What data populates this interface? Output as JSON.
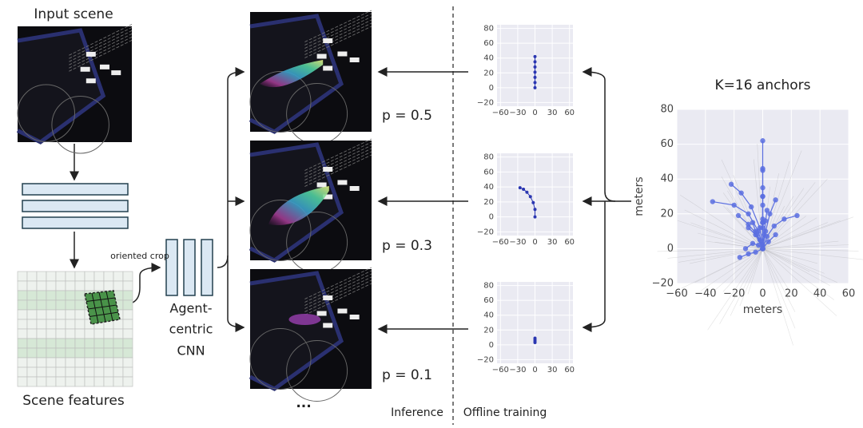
{
  "input_title": "Input scene",
  "features_title": "Scene features",
  "crop_label": "oriented crop",
  "cnn_label": [
    "Agent-",
    "centric",
    "CNN"
  ],
  "probabilities": [
    "p = 0.5",
    "p = 0.3",
    "p = 0.1"
  ],
  "more": "...",
  "inference": "Inference",
  "offline": "Offline training",
  "chart_data": [
    {
      "type": "line",
      "color": "#2a36b1",
      "grid": true,
      "xlim": [
        -66,
        66
      ],
      "ylim": [
        -25,
        85
      ],
      "xticks": [
        {
          "value": -60,
          "label": "−60"
        },
        {
          "value": -30,
          "label": "−30"
        },
        0,
        30,
        60
      ],
      "yticks": [
        {
          "value": -20,
          "label": "−20"
        },
        0,
        20,
        40,
        60,
        80
      ],
      "series": [
        {
          "x": [
            0,
            0,
            0,
            0,
            0,
            0,
            0
          ],
          "values": [
            0,
            7,
            14,
            21,
            28,
            35,
            42
          ]
        }
      ]
    },
    {
      "type": "line",
      "color": "#2a36b1",
      "grid": true,
      "xlim": [
        -66,
        66
      ],
      "ylim": [
        -25,
        85
      ],
      "xticks": [
        {
          "value": -60,
          "label": "−60"
        },
        {
          "value": -30,
          "label": "−30"
        },
        0,
        30,
        60
      ],
      "yticks": [
        {
          "value": -20,
          "label": "−20"
        },
        0,
        20,
        40,
        60,
        80
      ],
      "series": [
        {
          "x": [
            0,
            0,
            -3,
            -8,
            -14,
            -20,
            -26
          ],
          "values": [
            0,
            10,
            19,
            27,
            33,
            37,
            39
          ]
        }
      ]
    },
    {
      "type": "line",
      "color": "#2a36b1",
      "grid": true,
      "xlim": [
        -66,
        66
      ],
      "ylim": [
        -25,
        85
      ],
      "xticks": [
        {
          "value": -60,
          "label": "−60"
        },
        {
          "value": -30,
          "label": "−30"
        },
        0,
        30,
        60
      ],
      "yticks": [
        {
          "value": -20,
          "label": "−20"
        },
        0,
        20,
        40,
        60,
        80
      ],
      "series": [
        {
          "x": [
            0,
            0,
            0,
            0
          ],
          "values": [
            3,
            5,
            7,
            9
          ]
        }
      ]
    },
    {
      "type": "line",
      "title": "K=16 anchors",
      "xlabel": "meters",
      "ylabel": "meters",
      "color": "#5a6ee0",
      "grid": true,
      "xlim": [
        -60,
        60
      ],
      "ylim": [
        -20,
        80
      ],
      "xticks": [
        {
          "value": -60,
          "label": "−60"
        },
        {
          "value": -40,
          "label": "−40"
        },
        {
          "value": -20,
          "label": "−20"
        },
        0,
        20,
        40,
        60
      ],
      "yticks": [
        {
          "value": -20,
          "label": "−20"
        },
        0,
        20,
        40,
        60,
        80
      ],
      "series": [
        {
          "x": [
            0,
            0,
            0,
            0,
            0
          ],
          "values": [
            0,
            15,
            30,
            46,
            62
          ]
        },
        {
          "x": [
            0,
            0,
            0,
            0
          ],
          "values": [
            0,
            15,
            30,
            45
          ]
        },
        {
          "x": [
            0,
            0,
            0
          ],
          "values": [
            0,
            17,
            35
          ]
        },
        {
          "x": [
            0,
            0,
            0
          ],
          "values": [
            0,
            12,
            25
          ]
        },
        {
          "x": [
            0,
            -3,
            -10,
            -20,
            -35
          ],
          "values": [
            0,
            10,
            20,
            25,
            27
          ]
        },
        {
          "x": [
            0,
            -2,
            -8,
            -15,
            -22
          ],
          "values": [
            0,
            12,
            24,
            32,
            37
          ]
        },
        {
          "x": [
            0,
            -4,
            -10,
            -17
          ],
          "values": [
            0,
            8,
            14,
            19
          ]
        },
        {
          "x": [
            0,
            3,
            8,
            15,
            24
          ],
          "values": [
            0,
            7,
            13,
            17,
            19
          ]
        },
        {
          "x": [
            0,
            2,
            5,
            9
          ],
          "values": [
            0,
            10,
            20,
            28
          ]
        },
        {
          "x": [
            0,
            -5,
            -10
          ],
          "values": [
            0,
            8,
            12
          ]
        },
        {
          "x": [
            0,
            -5,
            -10,
            -16
          ],
          "values": [
            0,
            -2,
            -3,
            -5
          ]
        },
        {
          "x": [
            0,
            -3,
            -7,
            -12
          ],
          "values": [
            0,
            2,
            3,
            0
          ]
        },
        {
          "x": [
            0,
            4,
            9
          ],
          "values": [
            0,
            4,
            8
          ]
        },
        {
          "x": [
            0,
            0
          ],
          "values": [
            0,
            2
          ]
        },
        {
          "x": [
            0,
            -2,
            -5,
            -7
          ],
          "values": [
            0,
            5,
            10,
            15
          ]
        },
        {
          "x": [
            0,
            1,
            2,
            3
          ],
          "values": [
            0,
            8,
            16,
            22
          ]
        }
      ]
    }
  ]
}
